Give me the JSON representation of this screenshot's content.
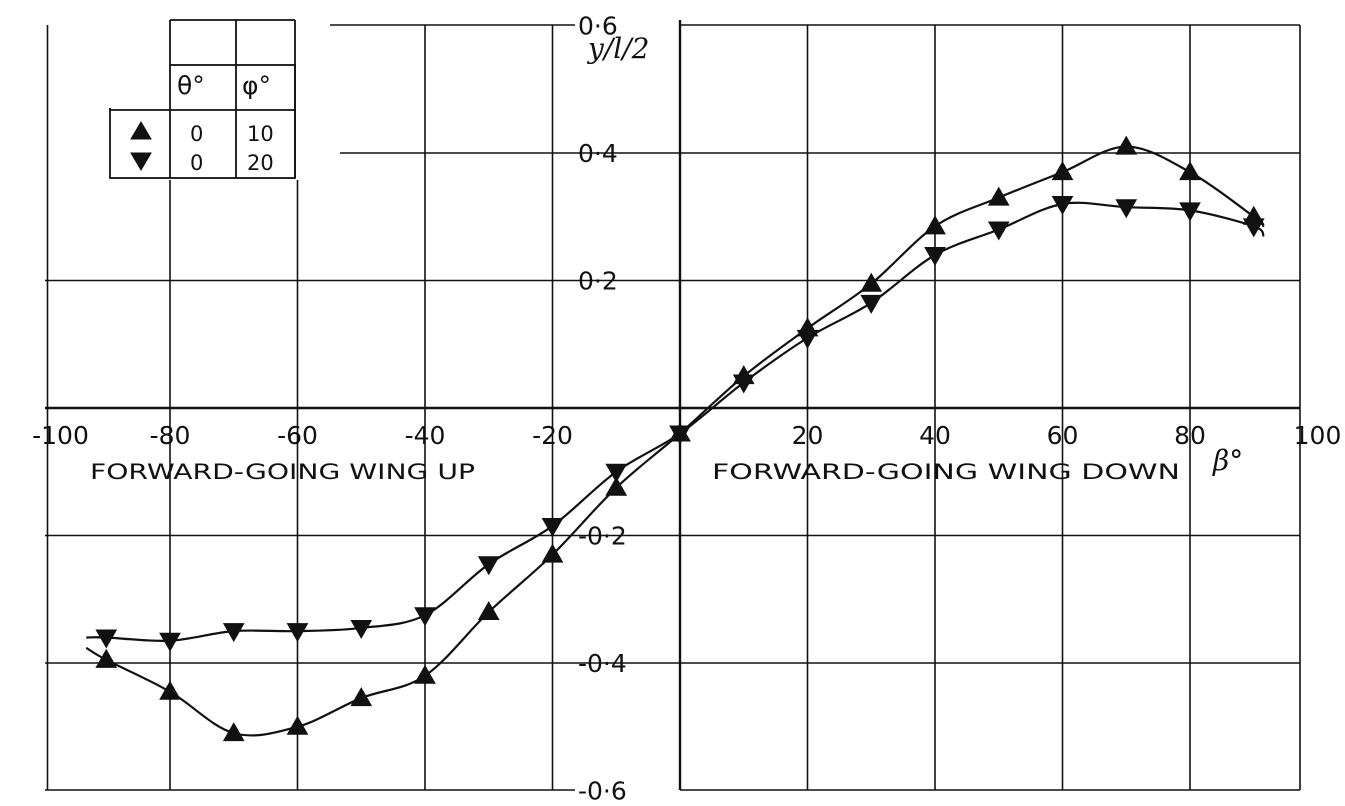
{
  "chart_data": {
    "type": "line",
    "title": "",
    "xlabel": "β°",
    "ylabel": "y/l/2",
    "xlim": [
      -100,
      100
    ],
    "ylim": [
      -0.6,
      0.6
    ],
    "x_ticks": [
      -100,
      -80,
      -60,
      -40,
      -20,
      20,
      40,
      60,
      80,
      100
    ],
    "x_tick_labels": [
      "-100",
      "-80",
      "-60",
      "-40",
      "-20",
      "20",
      "40",
      "60",
      "80",
      "100"
    ],
    "y_ticks": [
      0.6,
      0.4,
      0.2,
      -0.2,
      -0.4,
      -0.6
    ],
    "y_tick_labels": [
      "0·6",
      "0·4",
      "0·2",
      "-0·2",
      "-0·4",
      "-0·6"
    ],
    "grid": true,
    "annotations": [
      {
        "text": "FORWARD-GOING WING UP"
      },
      {
        "text": "FORWARD-GOING WING DOWN"
      }
    ],
    "legend": {
      "placement": "top-left",
      "headers": [
        "θ°",
        "φ°"
      ],
      "rows": [
        {
          "symbol": "up-triangle",
          "theta": "0",
          "phi": "10"
        },
        {
          "symbol": "down-triangle",
          "theta": "0",
          "phi": "20"
        }
      ]
    },
    "series": [
      {
        "marker": "up-triangle",
        "x": [
          -90,
          -80,
          -70,
          -60,
          -50,
          -40,
          -30,
          -20,
          -10,
          0,
          10,
          20,
          30,
          40,
          50,
          60,
          70,
          80,
          90
        ],
        "y": [
          -0.395,
          -0.445,
          -0.51,
          -0.5,
          -0.455,
          -0.42,
          -0.32,
          -0.23,
          -0.125,
          -0.04,
          0.05,
          0.125,
          0.195,
          0.285,
          0.33,
          0.37,
          0.41,
          0.37,
          0.3
        ]
      },
      {
        "marker": "down-triangle",
        "x": [
          -90,
          -80,
          -70,
          -60,
          -50,
          -40,
          -30,
          -20,
          -10,
          0,
          10,
          20,
          30,
          40,
          50,
          60,
          70,
          80,
          90
        ],
        "y": [
          -0.36,
          -0.365,
          -0.35,
          -0.35,
          -0.345,
          -0.325,
          -0.245,
          -0.185,
          -0.1,
          -0.04,
          0.04,
          0.11,
          0.165,
          0.24,
          0.28,
          0.32,
          0.315,
          0.31,
          0.285
        ]
      }
    ]
  }
}
